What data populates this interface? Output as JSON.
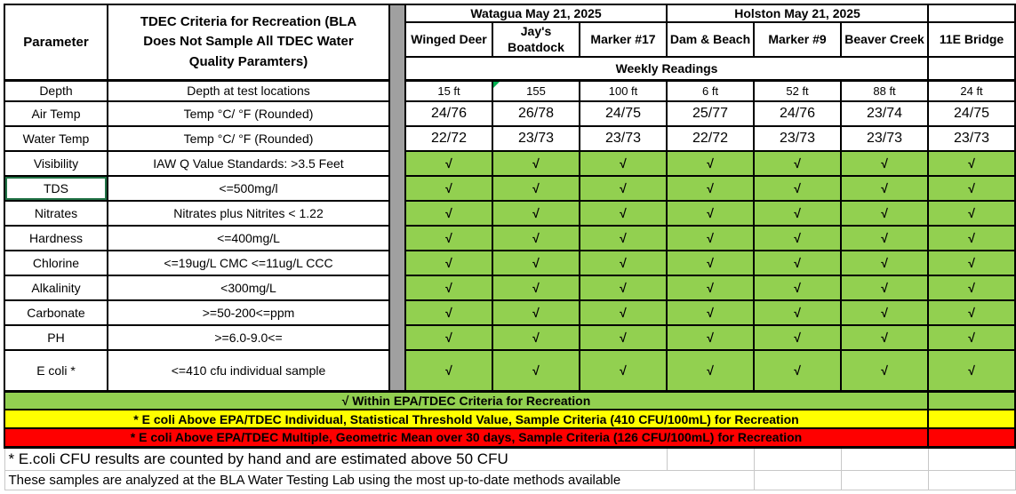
{
  "colors": {
    "green": "#92D050",
    "yellow": "#FFFF00",
    "red": "#FF0000",
    "gray": "#A0A0A0",
    "selection": "#217346",
    "triangle": "#00B050"
  },
  "header": {
    "parameter_label": "Parameter",
    "criteria_title": "TDEC Criteria for Recreation (BLA Does Not Sample All TDEC Water Quality Paramters)",
    "groups": [
      {
        "label": "Watagua May 21, 2025"
      },
      {
        "label": "Holston May 21, 2025"
      }
    ],
    "columns": [
      "Winged Deer",
      "Jay's Boatdock",
      "Marker #17",
      "Dam & Beach",
      "Marker #9",
      "Beaver Creek",
      "11E Bridge"
    ],
    "weekly_label": "Weekly Readings"
  },
  "rows": [
    {
      "parameter": "Depth",
      "criteria": "Depth at test locations",
      "kind": "depth",
      "values": [
        "15 ft",
        "155",
        "100 ft",
        "6 ft",
        "52 ft",
        "88 ft",
        "24 ft"
      ]
    },
    {
      "parameter": "Air Temp",
      "criteria": "Temp  °C/ °F   (Rounded)",
      "kind": "temp",
      "values": [
        "24/76",
        "26/78",
        "24/75",
        "25/77",
        "24/76",
        "23/74",
        "24/75"
      ]
    },
    {
      "parameter": "Water Temp",
      "criteria": "Temp  °C/ °F   (Rounded)",
      "kind": "temp",
      "values": [
        "22/72",
        "23/73",
        "23/73",
        "22/72",
        "23/73",
        "23/73",
        "23/73"
      ]
    },
    {
      "parameter": "Visibility",
      "criteria": "IAW Q Value Standards: >3.5 Feet",
      "kind": "check",
      "values": [
        "√",
        "√",
        "√",
        "√",
        "√",
        "√",
        "√"
      ]
    },
    {
      "parameter": "TDS",
      "criteria": "<=500mg/l",
      "kind": "check",
      "values": [
        "√",
        "√",
        "√",
        "√",
        "√",
        "√",
        "√"
      ]
    },
    {
      "parameter": "Nitrates",
      "criteria": "Nitrates plus Nitrites < 1.22",
      "kind": "check",
      "values": [
        "√",
        "√",
        "√",
        "√",
        "√",
        "√",
        "√"
      ]
    },
    {
      "parameter": "Hardness",
      "criteria": "<=400mg/L",
      "kind": "check",
      "values": [
        "√",
        "√",
        "√",
        "√",
        "√",
        "√",
        "√"
      ]
    },
    {
      "parameter": "Chlorine",
      "criteria": "<=19ug/L CMC  <=11ug/L CCC",
      "kind": "check",
      "values": [
        "√",
        "√",
        "√",
        "√",
        "√",
        "√",
        "√"
      ]
    },
    {
      "parameter": "Alkalinity",
      "criteria": "<300mg/L",
      "kind": "check",
      "values": [
        "√",
        "√",
        "√",
        "√",
        "√",
        "√",
        "√"
      ]
    },
    {
      "parameter": "Carbonate",
      "criteria": ">=50-200<=ppm",
      "kind": "check",
      "values": [
        "√",
        "√",
        "√",
        "√",
        "√",
        "√",
        "√"
      ]
    },
    {
      "parameter": "PH",
      "criteria": ">=6.0-9.0<=",
      "kind": "check",
      "values": [
        "√",
        "√",
        "√",
        "√",
        "√",
        "√",
        "√"
      ]
    },
    {
      "parameter": "E coli *",
      "criteria": "<=410 cfu individual sample",
      "kind": "check",
      "values": [
        "√",
        "√",
        "√",
        "√",
        "√",
        "√",
        "√"
      ]
    }
  ],
  "legend": [
    {
      "text": "√ Within EPA/TDEC Criteria for Recreation",
      "color": "green"
    },
    {
      "text": "* E coli Above EPA/TDEC Individual, Statistical Threshold Value, Sample Criteria (410 CFU/100mL) for Recreation",
      "color": "yellow"
    },
    {
      "text": "* E coli Above EPA/TDEC Multiple, Geometric Mean over 30 days, Sample Criteria (126 CFU/100mL) for Recreation",
      "color": "red"
    }
  ],
  "notes": [
    {
      "text": "* E.coli CFU results are counted by hand and are estimated above 50 CFU"
    },
    {
      "text": "These samples are analyzed at the BLA Water Testing Lab using the most up-to-date methods available"
    }
  ],
  "annotations": {
    "error_triangle": {
      "row": 0,
      "col": 1
    },
    "selected_cell": {
      "row": 4,
      "field": "parameter"
    }
  }
}
